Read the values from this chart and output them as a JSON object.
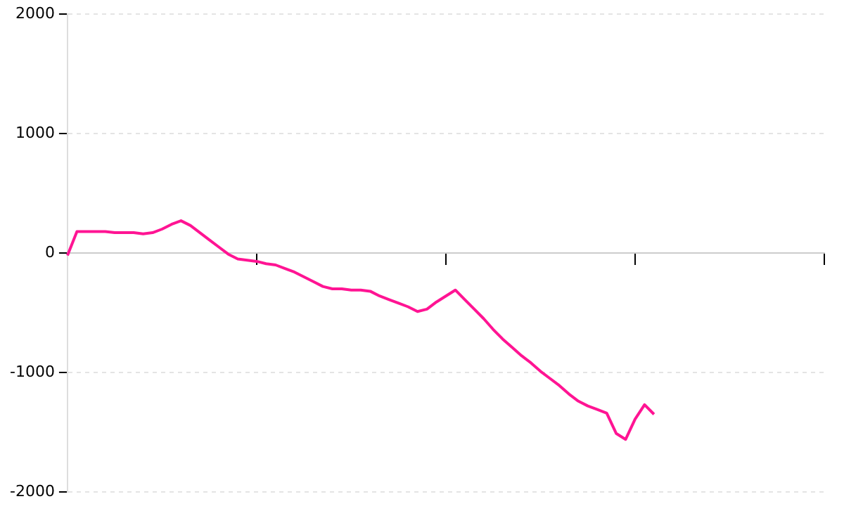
{
  "chart_data": {
    "type": "line",
    "categories": [
      null,
      null,
      null,
      null,
      null,
      null,
      null,
      null,
      null,
      null,
      null,
      null,
      null,
      null,
      null,
      null,
      null,
      null,
      null,
      null,
      null,
      null,
      null,
      null,
      null,
      null,
      null,
      null,
      null,
      null,
      null,
      null,
      null,
      null,
      null,
      null,
      null,
      null,
      null,
      null,
      null,
      null,
      null,
      null,
      null,
      null,
      null,
      null,
      null,
      null,
      null,
      null,
      null,
      null,
      null,
      null,
      null,
      null,
      null,
      null,
      null,
      null,
      null,
      null,
      null,
      null,
      null,
      null,
      null,
      null,
      null,
      null,
      null,
      null,
      null,
      null,
      null,
      null,
      null,
      null,
      null
    ],
    "series": [
      {
        "color": "#ff1493",
        "values": [
          -20,
          180,
          180,
          180,
          180,
          170,
          170,
          170,
          160,
          170,
          200,
          240,
          270,
          230,
          170,
          110,
          50,
          -10,
          -50,
          -60,
          -70,
          -90,
          -100,
          -130,
          -160,
          -200,
          -240,
          -280,
          -300,
          -300,
          -310,
          -310,
          -320,
          -360,
          -390,
          -420,
          -450,
          -490,
          -470,
          -410,
          -360,
          -310,
          -390,
          -470,
          -550,
          -640,
          -720,
          -790,
          -860,
          -920,
          -990,
          -1050,
          -1110,
          -1180,
          -1240,
          -1280,
          -1310,
          -1340,
          -1510,
          -1560,
          -1390,
          -1270,
          -1350,
          null,
          null,
          null,
          null,
          null,
          null,
          null,
          null,
          null,
          null,
          null,
          null,
          null,
          null,
          null,
          null,
          null,
          null
        ]
      }
    ],
    "ylim": [
      -2000,
      2000
    ],
    "yticks": [
      -2000,
      -1000,
      0,
      1000,
      2000
    ],
    "grid": "y",
    "legend": false,
    "marker": "none",
    "line_style": "solid"
  }
}
